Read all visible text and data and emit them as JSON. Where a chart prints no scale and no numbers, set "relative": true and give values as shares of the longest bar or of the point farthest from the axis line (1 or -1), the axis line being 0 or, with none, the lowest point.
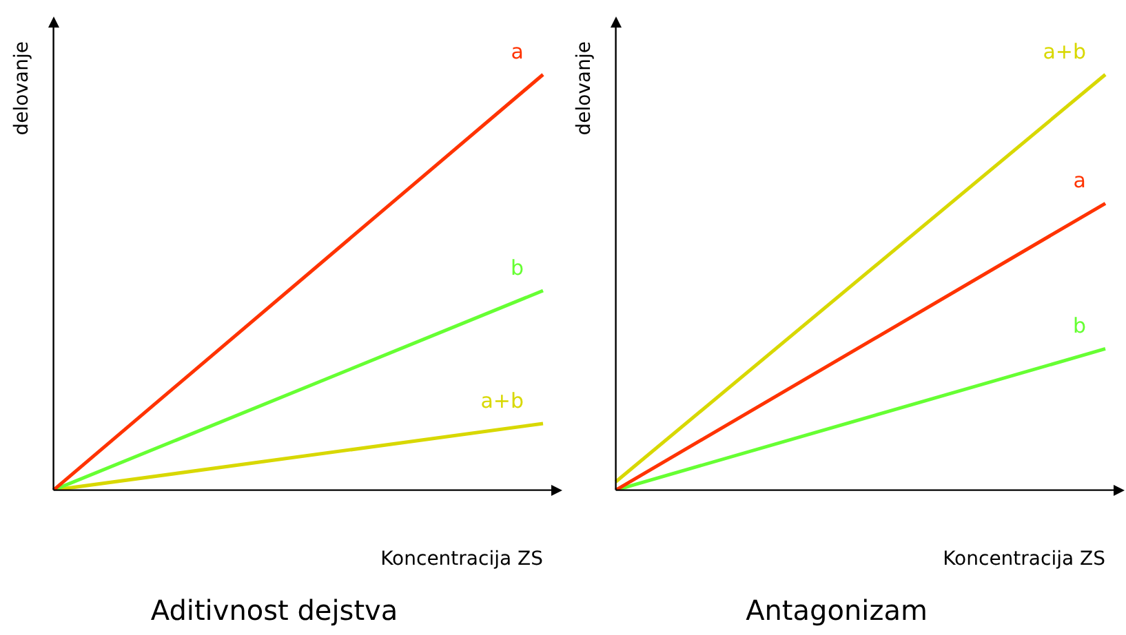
{
  "chart_data": [
    {
      "type": "line",
      "title": "Aditivnost dejstva",
      "xlabel": "Koncentracija ZS",
      "ylabel": "delovanje",
      "relative": true,
      "categories": [
        null,
        null
      ],
      "legend": false,
      "grid": false,
      "marker": "none",
      "line_style": "solid",
      "series": [
        {
          "name": "a",
          "color": "#ff3300",
          "values": [
            0,
            1
          ]
        },
        {
          "name": "b",
          "color": "#66ff33",
          "values": [
            0,
            0.48
          ]
        },
        {
          "name": "a+b",
          "color": "#d8d800",
          "values": [
            0,
            0.16
          ]
        }
      ]
    },
    {
      "type": "line",
      "title": "Antagonizam",
      "xlabel": "Koncentracija ZS",
      "ylabel": "delovanje",
      "relative": true,
      "categories": [
        null,
        null
      ],
      "legend": false,
      "grid": false,
      "marker": "none",
      "line_style": "solid",
      "series": [
        {
          "name": "a+b",
          "color": "#d8d800",
          "values": [
            0.02,
            1
          ]
        },
        {
          "name": "a",
          "color": "#ff3300",
          "values": [
            0,
            0.69
          ]
        },
        {
          "name": "b",
          "color": "#66ff33",
          "values": [
            0,
            0.34
          ]
        }
      ]
    }
  ]
}
